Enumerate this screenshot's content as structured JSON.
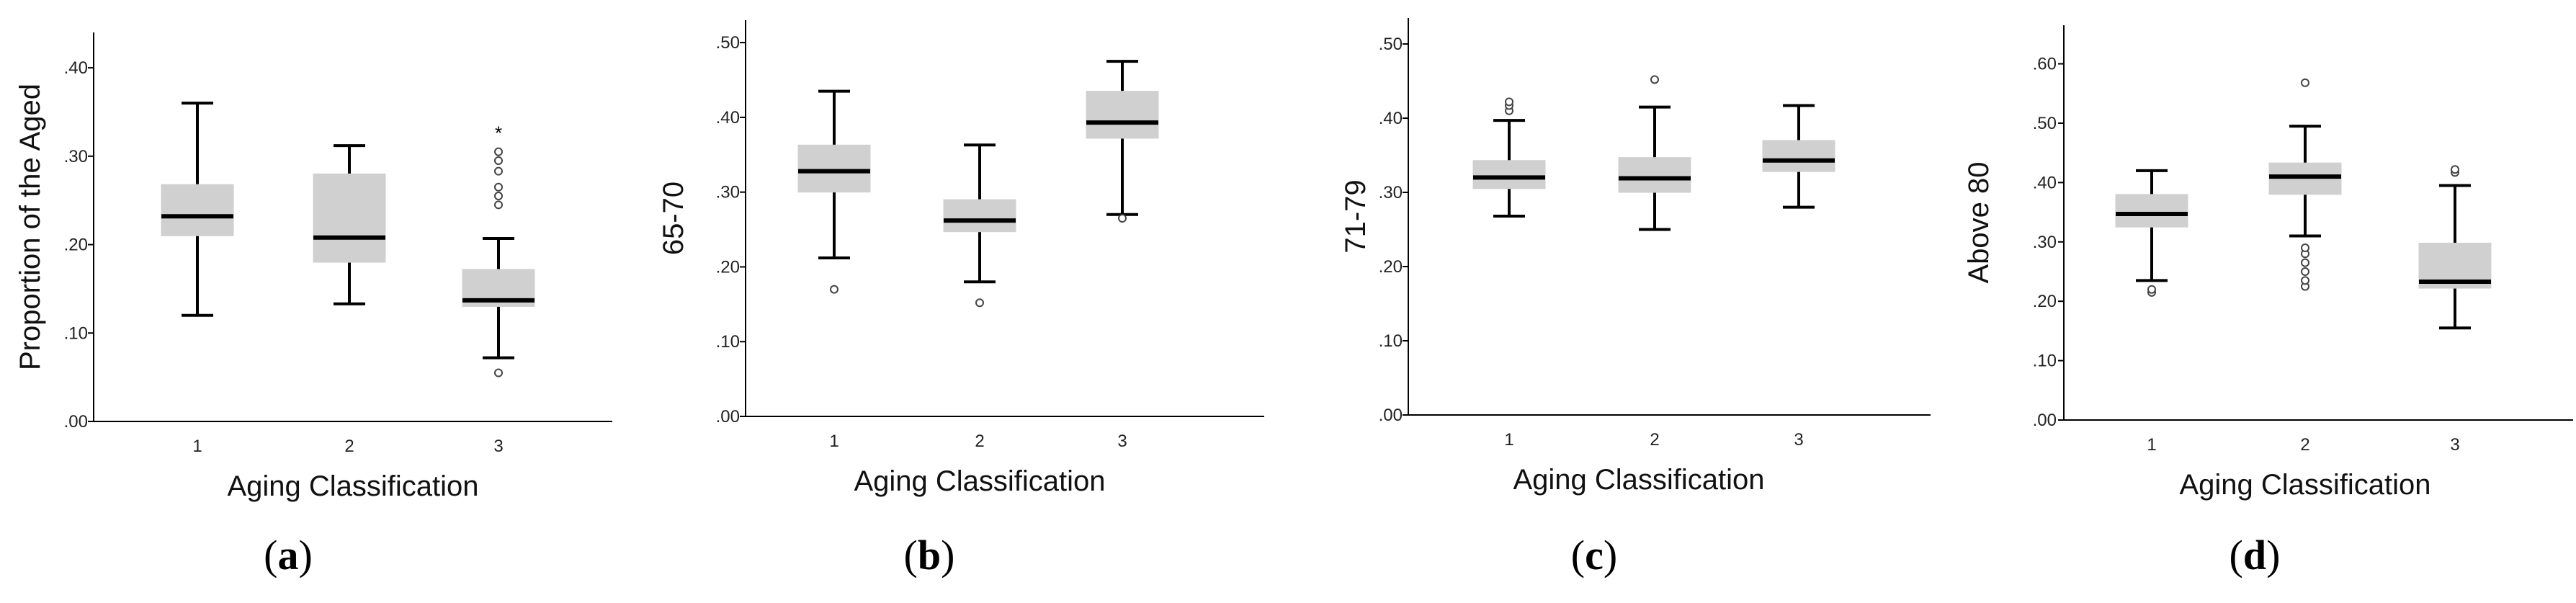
{
  "colors": {
    "box_fill": "#d0d0d0",
    "box_stroke": "#d0d0d0",
    "whisker": "#000000",
    "median": "#000000",
    "outlier": "#444444",
    "axis": "#000000"
  },
  "chart_data": [
    {
      "type": "boxplot",
      "panel_label": "a",
      "ylabel": "Proportion of the Aged",
      "xlabel": "Aging Classification",
      "categories": [
        "1",
        "2",
        "3"
      ],
      "yticks": [
        ".00",
        ".10",
        ".20",
        ".30",
        ".40"
      ],
      "ylim": [
        0,
        0.44
      ],
      "boxes": [
        {
          "category": "1",
          "whisker_low": 0.12,
          "q1": 0.21,
          "median": 0.232,
          "q3": 0.268,
          "whisker_high": 0.36,
          "outliers": [],
          "extremes": []
        },
        {
          "category": "2",
          "whisker_low": 0.133,
          "q1": 0.18,
          "median": 0.208,
          "q3": 0.28,
          "whisker_high": 0.312,
          "outliers": [],
          "extremes": []
        },
        {
          "category": "3",
          "whisker_low": 0.072,
          "q1": 0.13,
          "median": 0.137,
          "q3": 0.172,
          "whisker_high": 0.207,
          "outliers": [
            0.055,
            0.245,
            0.255,
            0.265,
            0.283,
            0.295,
            0.305
          ],
          "extremes": [
            0.327
          ]
        }
      ]
    },
    {
      "type": "boxplot",
      "panel_label": "b",
      "ylabel": "65-70",
      "xlabel": "Aging Classification",
      "categories": [
        "1",
        "2",
        "3"
      ],
      "yticks": [
        ".00",
        ".10",
        ".20",
        ".30",
        ".40",
        ".50"
      ],
      "ylim": [
        0,
        0.53
      ],
      "boxes": [
        {
          "category": "1",
          "whisker_low": 0.212,
          "q1": 0.3,
          "median": 0.328,
          "q3": 0.363,
          "whisker_high": 0.435,
          "outliers": [
            0.17
          ],
          "extremes": []
        },
        {
          "category": "2",
          "whisker_low": 0.18,
          "q1": 0.247,
          "median": 0.262,
          "q3": 0.29,
          "whisker_high": 0.363,
          "outliers": [
            0.152
          ],
          "extremes": []
        },
        {
          "category": "3",
          "whisker_low": 0.27,
          "q1": 0.372,
          "median": 0.393,
          "q3": 0.435,
          "whisker_high": 0.475,
          "outliers": [
            0.265
          ],
          "extremes": []
        }
      ]
    },
    {
      "type": "boxplot",
      "panel_label": "c",
      "ylabel": "71-79",
      "xlabel": "Aging Classification",
      "categories": [
        "1",
        "2",
        "3"
      ],
      "yticks": [
        ".00",
        ".10",
        ".20",
        ".30",
        ".40",
        ".50"
      ],
      "ylim": [
        0,
        0.535
      ],
      "boxes": [
        {
          "category": "1",
          "whisker_low": 0.268,
          "q1": 0.305,
          "median": 0.32,
          "q3": 0.343,
          "whisker_high": 0.397,
          "outliers": [
            0.41,
            0.417,
            0.422
          ],
          "extremes": []
        },
        {
          "category": "2",
          "whisker_low": 0.25,
          "q1": 0.3,
          "median": 0.319,
          "q3": 0.347,
          "whisker_high": 0.415,
          "outliers": [
            0.452
          ],
          "extremes": []
        },
        {
          "category": "3",
          "whisker_low": 0.28,
          "q1": 0.328,
          "median": 0.343,
          "q3": 0.37,
          "whisker_high": 0.417,
          "outliers": [],
          "extremes": []
        }
      ]
    },
    {
      "type": "boxplot",
      "panel_label": "d",
      "ylabel": "Above 80",
      "xlabel": "Aging Classification",
      "categories": [
        "1",
        "2",
        "3"
      ],
      "yticks": [
        ".00",
        ".10",
        ".20",
        ".30",
        ".40",
        ".50",
        ".60"
      ],
      "ylim": [
        0,
        0.665
      ],
      "boxes": [
        {
          "category": "1",
          "whisker_low": 0.235,
          "q1": 0.325,
          "median": 0.347,
          "q3": 0.38,
          "whisker_high": 0.42,
          "outliers": [
            0.215,
            0.22
          ],
          "extremes": []
        },
        {
          "category": "2",
          "whisker_low": 0.31,
          "q1": 0.38,
          "median": 0.41,
          "q3": 0.433,
          "whisker_high": 0.495,
          "outliers": [
            0.225,
            0.235,
            0.25,
            0.265,
            0.28,
            0.29,
            0.568
          ],
          "extremes": []
        },
        {
          "category": "3",
          "whisker_low": 0.155,
          "q1": 0.222,
          "median": 0.233,
          "q3": 0.298,
          "whisker_high": 0.395,
          "outliers": [
            0.417,
            0.422
          ],
          "extremes": []
        }
      ]
    }
  ]
}
